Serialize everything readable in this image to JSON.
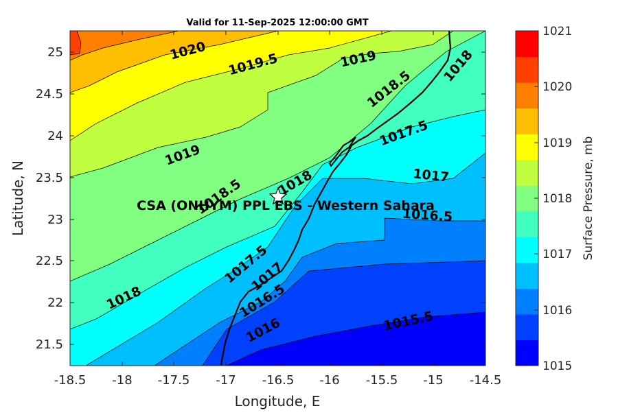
{
  "title": "Valid for 11-Sep-2025 12:00:00 GMT",
  "x_axis": {
    "label": "Longitude, E",
    "ticks": [
      "-18.5",
      "-18",
      "-17.5",
      "-17",
      "-16.5",
      "-16",
      "-15.5",
      "-15",
      "-14.5"
    ]
  },
  "y_axis": {
    "label": "Latitude, N",
    "ticks": [
      "21.5",
      "22",
      "22.5",
      "23",
      "23.5",
      "24",
      "24.5",
      "25"
    ]
  },
  "colorbar": {
    "label": "Surface Pressure, mb",
    "ticks": [
      "1015",
      "1016",
      "1017",
      "1018",
      "1019",
      "1020",
      "1021"
    ],
    "band_colors": [
      "#0000ff",
      "#0040ff",
      "#0080ff",
      "#00bfff",
      "#00ffff",
      "#40ffbf",
      "#80ff80",
      "#bfff40",
      "#ffff00",
      "#ffbf00",
      "#ff8000",
      "#ff4000",
      "#ff0000"
    ]
  },
  "contour_labels": [
    "1020",
    "1019.5",
    "1019",
    "1018.5",
    "1018",
    "1019",
    "1017.5",
    "1017",
    "1016.5",
    "1018.5",
    "1018",
    "1018",
    "1017.5",
    "1017",
    "1016.5",
    "1016",
    "1015.5"
  ],
  "site": {
    "label": "CSA (ONHYM) PPL EBS  - Western Sahara",
    "marker": "star-icon"
  }
}
